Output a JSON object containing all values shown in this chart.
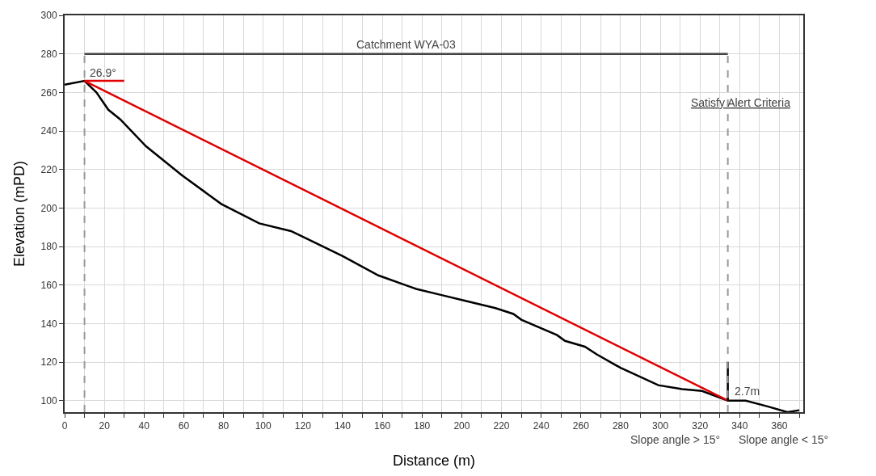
{
  "chart_data": {
    "type": "line",
    "xlabel": "Distance (m)",
    "ylabel": "Elevation (mPD)",
    "xlim": [
      0,
      372
    ],
    "ylim": [
      94,
      300
    ],
    "xticks": [
      0,
      {
        "value": 10,
        "label": null
      },
      20,
      {
        "value": 30,
        "label": null
      },
      40,
      {
        "value": 50,
        "label": null
      },
      60,
      {
        "value": 70,
        "label": null
      },
      80,
      {
        "value": 90,
        "label": null
      },
      100,
      {
        "value": 110,
        "label": null
      },
      120,
      {
        "value": 130,
        "label": null
      },
      140,
      {
        "value": 150,
        "label": null
      },
      160,
      {
        "value": 170,
        "label": null
      },
      180,
      {
        "value": 190,
        "label": null
      },
      200,
      {
        "value": 210,
        "label": null
      },
      220,
      {
        "value": 230,
        "label": null
      },
      240,
      {
        "value": 250,
        "label": null
      },
      260,
      {
        "value": 270,
        "label": null
      },
      280,
      {
        "value": 290,
        "label": null
      },
      300,
      {
        "value": 310,
        "label": null
      },
      320,
      {
        "value": 330,
        "label": null
      },
      340,
      {
        "value": 350,
        "label": null
      },
      360,
      {
        "value": 370,
        "label": null
      }
    ],
    "yticks": [
      100,
      120,
      140,
      160,
      180,
      200,
      220,
      240,
      260,
      280,
      300
    ],
    "grid": true,
    "marker": "none",
    "x": [
      0,
      10,
      16,
      22,
      28,
      41,
      59,
      79,
      98,
      114,
      122,
      140,
      158,
      177,
      189,
      201,
      217,
      226,
      230,
      248,
      252,
      262,
      268,
      280,
      299,
      311,
      321,
      334,
      343,
      354,
      364,
      370
    ],
    "series": [
      {
        "color": "#000000",
        "values": [
          264,
          266,
          260,
          251,
          246,
          232,
          217,
          202,
          192,
          188,
          184,
          175,
          165,
          158,
          155,
          152,
          148,
          145,
          142,
          134,
          131,
          128,
          124,
          117,
          108,
          106,
          105,
          100,
          100,
          97,
          94,
          95
        ]
      },
      {
        "color": "#e00000",
        "x": [
          10,
          334
        ],
        "values": [
          266,
          100
        ]
      },
      {
        "color": "#e00000",
        "x": [
          10,
          30
        ],
        "values": [
          266,
          266
        ]
      },
      {
        "color": "#444444",
        "x": [
          10,
          334
        ],
        "values": [
          280,
          280
        ]
      },
      {
        "color": "#000000",
        "x": [
          334,
          334
        ],
        "values": [
          100,
          120
        ]
      }
    ],
    "ref_lines": [
      {
        "axis": "x",
        "value": 10,
        "color": "#999999",
        "line_style": "dashed"
      },
      {
        "axis": "x",
        "value": 334,
        "color": "#999999",
        "line_style": "dashed"
      }
    ],
    "annotations": [
      {
        "text": "Catchment WYA-03",
        "x": 172,
        "y": 280
      },
      {
        "text": "26.9°",
        "x": 10,
        "y": 266
      },
      "Satisfy Alert Criteria",
      {
        "text": "2.7m",
        "x": 334,
        "y": 100
      },
      "Slope angle > 15°",
      "Slope angle < 15°"
    ]
  }
}
